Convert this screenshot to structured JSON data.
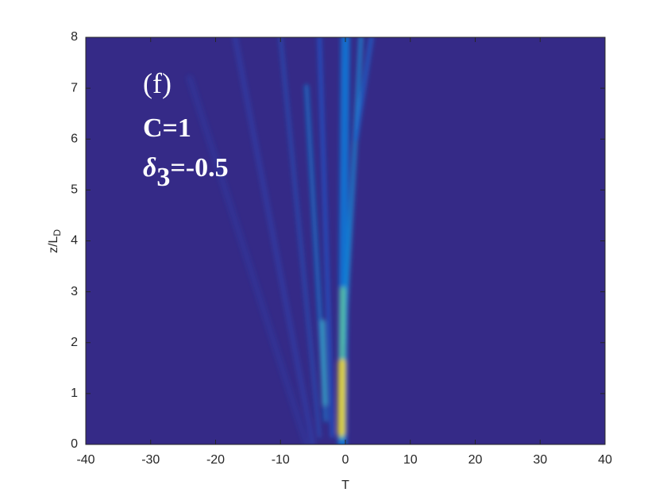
{
  "chart_data": {
    "type": "heatmap",
    "xlabel": "T",
    "ylabel": "z/L",
    "ylabel_sub": "D",
    "xlim": [
      -40,
      40
    ],
    "xticks": [
      -40,
      -30,
      -20,
      -10,
      0,
      10,
      20,
      30,
      40
    ],
    "ylim": [
      0,
      8
    ],
    "yticks": [
      0,
      1,
      2,
      3,
      4,
      5,
      6,
      7,
      8
    ],
    "annotations": [
      "(f)",
      "C=1"
    ],
    "delta_label": {
      "symbol": "δ",
      "sub": "3",
      "text": "=-0.5"
    },
    "background_color": "#352a87"
  }
}
